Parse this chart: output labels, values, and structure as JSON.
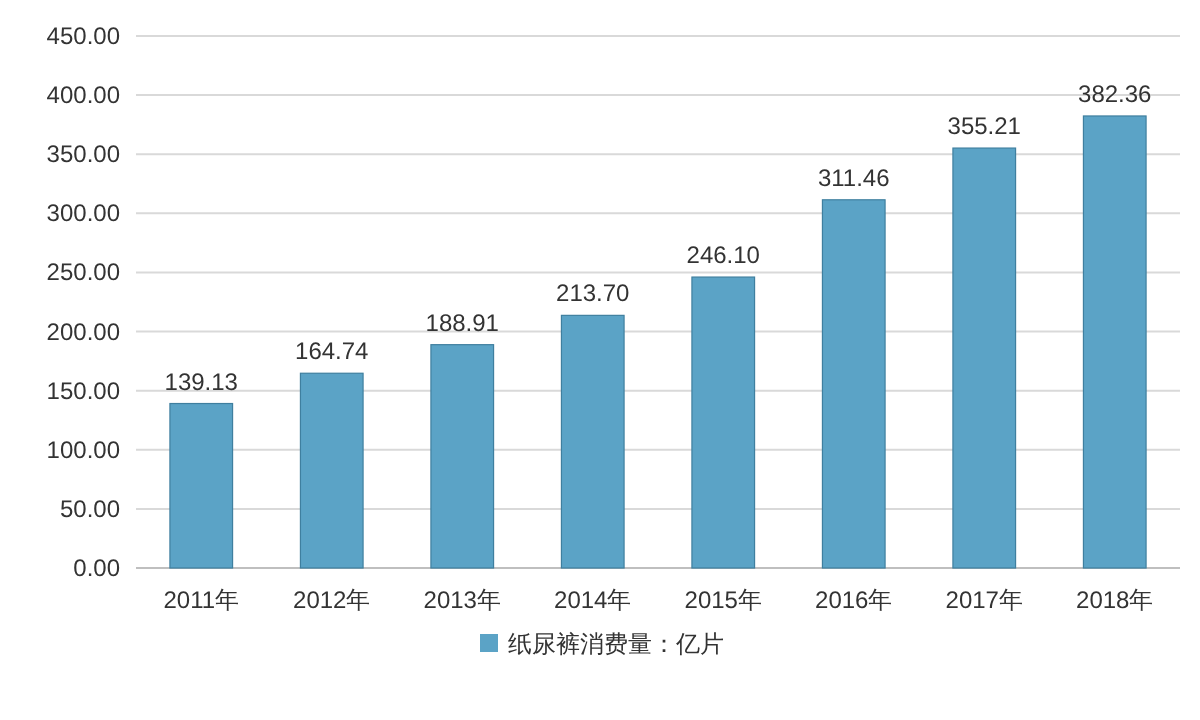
{
  "chart_data": {
    "type": "bar",
    "categories": [
      "2011年",
      "2012年",
      "2013年",
      "2014年",
      "2015年",
      "2016年",
      "2017年",
      "2018年"
    ],
    "series": [
      {
        "name": "纸尿裤消费量：亿片",
        "color": "#5ba3c6",
        "values": [
          139.13,
          164.74,
          188.91,
          213.7,
          246.1,
          311.46,
          355.21,
          382.36
        ]
      }
    ],
    "value_labels": [
      "139.13",
      "164.74",
      "188.91",
      "213.70",
      "246.10",
      "311.46",
      "355.21",
      "382.36"
    ],
    "ylim": [
      0,
      450
    ],
    "yticks": [
      {
        "value": 0,
        "label": "0.00"
      },
      {
        "value": 50,
        "label": "50.00"
      },
      {
        "value": 100,
        "label": "100.00"
      },
      {
        "value": 150,
        "label": "150.00"
      },
      {
        "value": 200,
        "label": "200.00"
      },
      {
        "value": 250,
        "label": "250.00"
      },
      {
        "value": 300,
        "label": "300.00"
      },
      {
        "value": 350,
        "label": "350.00"
      },
      {
        "value": 400,
        "label": "400.00"
      },
      {
        "value": 450,
        "label": "450.00"
      }
    ],
    "grid": "y",
    "legend": "bottom"
  }
}
